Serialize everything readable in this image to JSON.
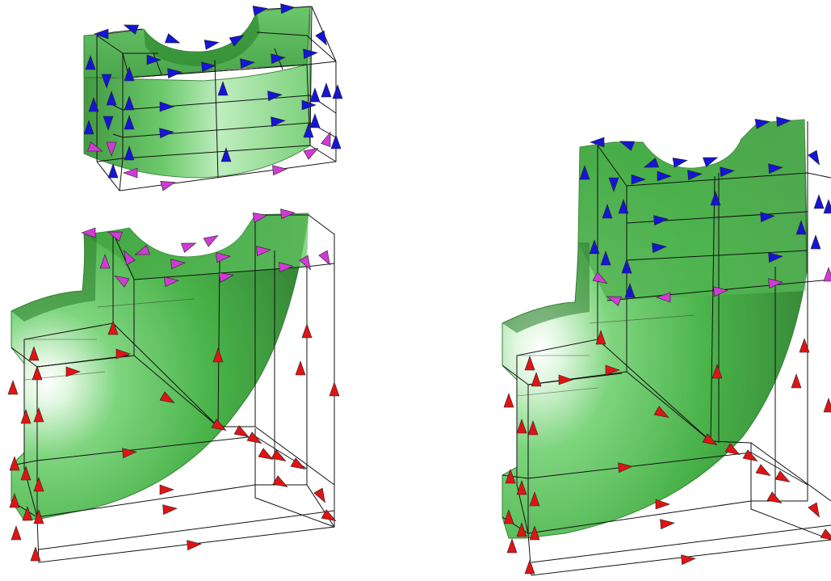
{
  "colors": {
    "background": "#ffffff",
    "solid_light": "#8fd88f",
    "solid_mid": "#4dbb4d",
    "solid_dark": "#2c7e2c",
    "highlight": "#ffffff",
    "wire": "#111111",
    "arrow_blue": "#1515d6",
    "arrow_magenta": "#d23ad6",
    "arrow_red": "#e01414"
  },
  "figures": [
    {
      "id": "block-top",
      "arrow_colors": [
        "blue",
        "magenta"
      ]
    },
    {
      "id": "elbow-left",
      "arrow_colors": [
        "magenta",
        "red"
      ]
    },
    {
      "id": "elbow-right",
      "arrow_colors": [
        "blue",
        "magenta",
        "red"
      ]
    }
  ],
  "icons": [
    "direction-arrow-icon"
  ]
}
